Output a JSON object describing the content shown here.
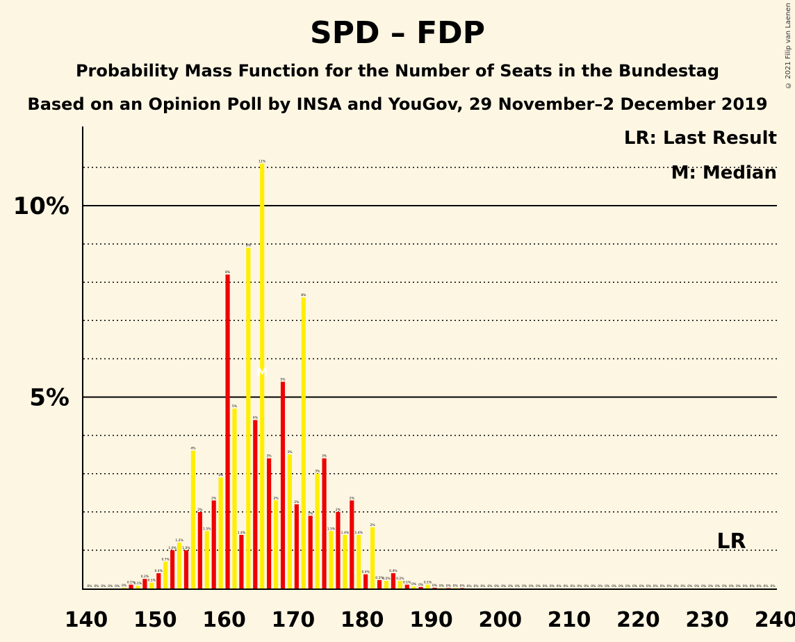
{
  "title": "SPD – FDP",
  "subtitle": "Probability Mass Function for the Number of Seats in the Bundestag",
  "subtitle2": "Based on an Opinion Poll by INSA and YouGov, 29 November–2 December 2019",
  "copyright": "© 2021 Filip van Laenen",
  "legend": {
    "last_result": "LR: Last Result",
    "median": "M: Median"
  },
  "markers": {
    "last_result_label": "LR",
    "last_result_seat": 233,
    "median_label": "M",
    "median_seat": 165
  },
  "colors": {
    "red": "#ee0000",
    "yellow": "#ffee00",
    "background": "#fdf6e3"
  },
  "chart_data": {
    "type": "bar",
    "xlim": [
      140,
      240
    ],
    "ylim": [
      0,
      12
    ],
    "x_ticks": [
      140,
      150,
      160,
      170,
      180,
      190,
      200,
      210,
      220,
      230,
      240
    ],
    "x_tick_labels": [
      "140",
      "150",
      "160",
      "170",
      "180",
      "190",
      "200",
      "210",
      "220",
      "230",
      "240"
    ],
    "y_ticks": [
      5,
      10
    ],
    "y_tick_labels": [
      "5%",
      "10%"
    ],
    "grid": "dotted every 1%, solid at 5% and 10%",
    "seats": [
      140,
      141,
      142,
      143,
      144,
      145,
      146,
      147,
      148,
      149,
      150,
      151,
      152,
      153,
      154,
      155,
      156,
      157,
      158,
      159,
      160,
      161,
      162,
      163,
      164,
      165,
      166,
      167,
      168,
      169,
      170,
      171,
      172,
      173,
      174,
      175,
      176,
      177,
      178,
      179,
      180,
      181,
      182,
      183,
      184,
      185,
      186,
      187,
      188,
      189,
      190,
      191,
      192,
      193,
      194,
      195,
      196,
      197,
      198,
      199,
      200,
      201,
      202,
      203,
      204,
      205,
      206,
      207,
      208,
      209,
      210,
      211,
      212,
      213,
      214,
      215,
      216,
      217,
      218,
      219,
      220,
      221,
      222,
      223,
      224,
      225,
      226,
      227,
      228,
      229,
      230,
      231,
      232,
      233,
      234,
      235,
      236,
      237,
      238,
      239
    ],
    "values": [
      0,
      0,
      0,
      0,
      0,
      0.02,
      0.1,
      0.07,
      0.25,
      0.15,
      0.4,
      0.7,
      1.0,
      1.2,
      1.0,
      3.6,
      2.0,
      1.5,
      2.3,
      2.9,
      8.2,
      4.7,
      1.4,
      8.9,
      4.4,
      11.1,
      3.4,
      2.3,
      5.4,
      3.5,
      2.2,
      7.6,
      1.9,
      3.0,
      3.4,
      1.5,
      2.0,
      1.4,
      2.3,
      1.4,
      0.37,
      1.6,
      0.22,
      0.2,
      0.4,
      0.2,
      0.1,
      0.05,
      0.04,
      0.1,
      0.02,
      0.01,
      0.01,
      0.01,
      0.01,
      0,
      0,
      0,
      0,
      0,
      0,
      0,
      0,
      0,
      0,
      0,
      0,
      0,
      0,
      0,
      0,
      0,
      0,
      0,
      0,
      0,
      0,
      0,
      0,
      0,
      0,
      0,
      0,
      0,
      0,
      0,
      0,
      0,
      0,
      0,
      0,
      0,
      0,
      0,
      0,
      0,
      0,
      0,
      0,
      0
    ],
    "bar_labels": [
      "0%",
      "0%",
      "0%",
      "0%",
      "0%",
      "0%",
      "0.1%",
      "0.1%",
      "0.2%",
      "0.1%",
      "0.4%",
      "0.7%",
      "1.0%",
      "1.2%",
      "1.0%",
      "4%",
      "2%",
      "1.5%",
      "2%",
      "3%",
      "8%",
      "5%",
      "1.4%",
      "9%",
      "4%",
      "11%",
      "3%",
      "2%",
      "5%",
      "3%",
      "2%",
      "8%",
      "2%",
      "3%",
      "3%",
      "1.5%",
      "2%",
      "1.4%",
      "2%",
      "1.4%",
      "0.4%",
      "2%",
      "0.2%",
      "0.2%",
      "0.4%",
      "0.2%",
      "0.1%",
      "0%",
      "0%",
      "0.1%",
      "0%",
      "0%",
      "0%",
      "0%",
      "0%",
      "0%",
      "0%",
      "0%",
      "0%",
      "0%",
      "0%",
      "0%",
      "0%",
      "0%",
      "0%",
      "0%",
      "0%",
      "0%",
      "0%",
      "0%",
      "0%",
      "0%",
      "0%",
      "0%",
      "0%",
      "0%",
      "0%",
      "0%",
      "0%",
      "0%",
      "0%",
      "0%",
      "0%",
      "0%",
      "0%",
      "0%",
      "0%",
      "0%",
      "0%",
      "0%",
      "0%",
      "0%",
      "0%",
      "0%",
      "0%",
      "0%",
      "0%",
      "0%",
      "0%",
      "0%"
    ]
  }
}
